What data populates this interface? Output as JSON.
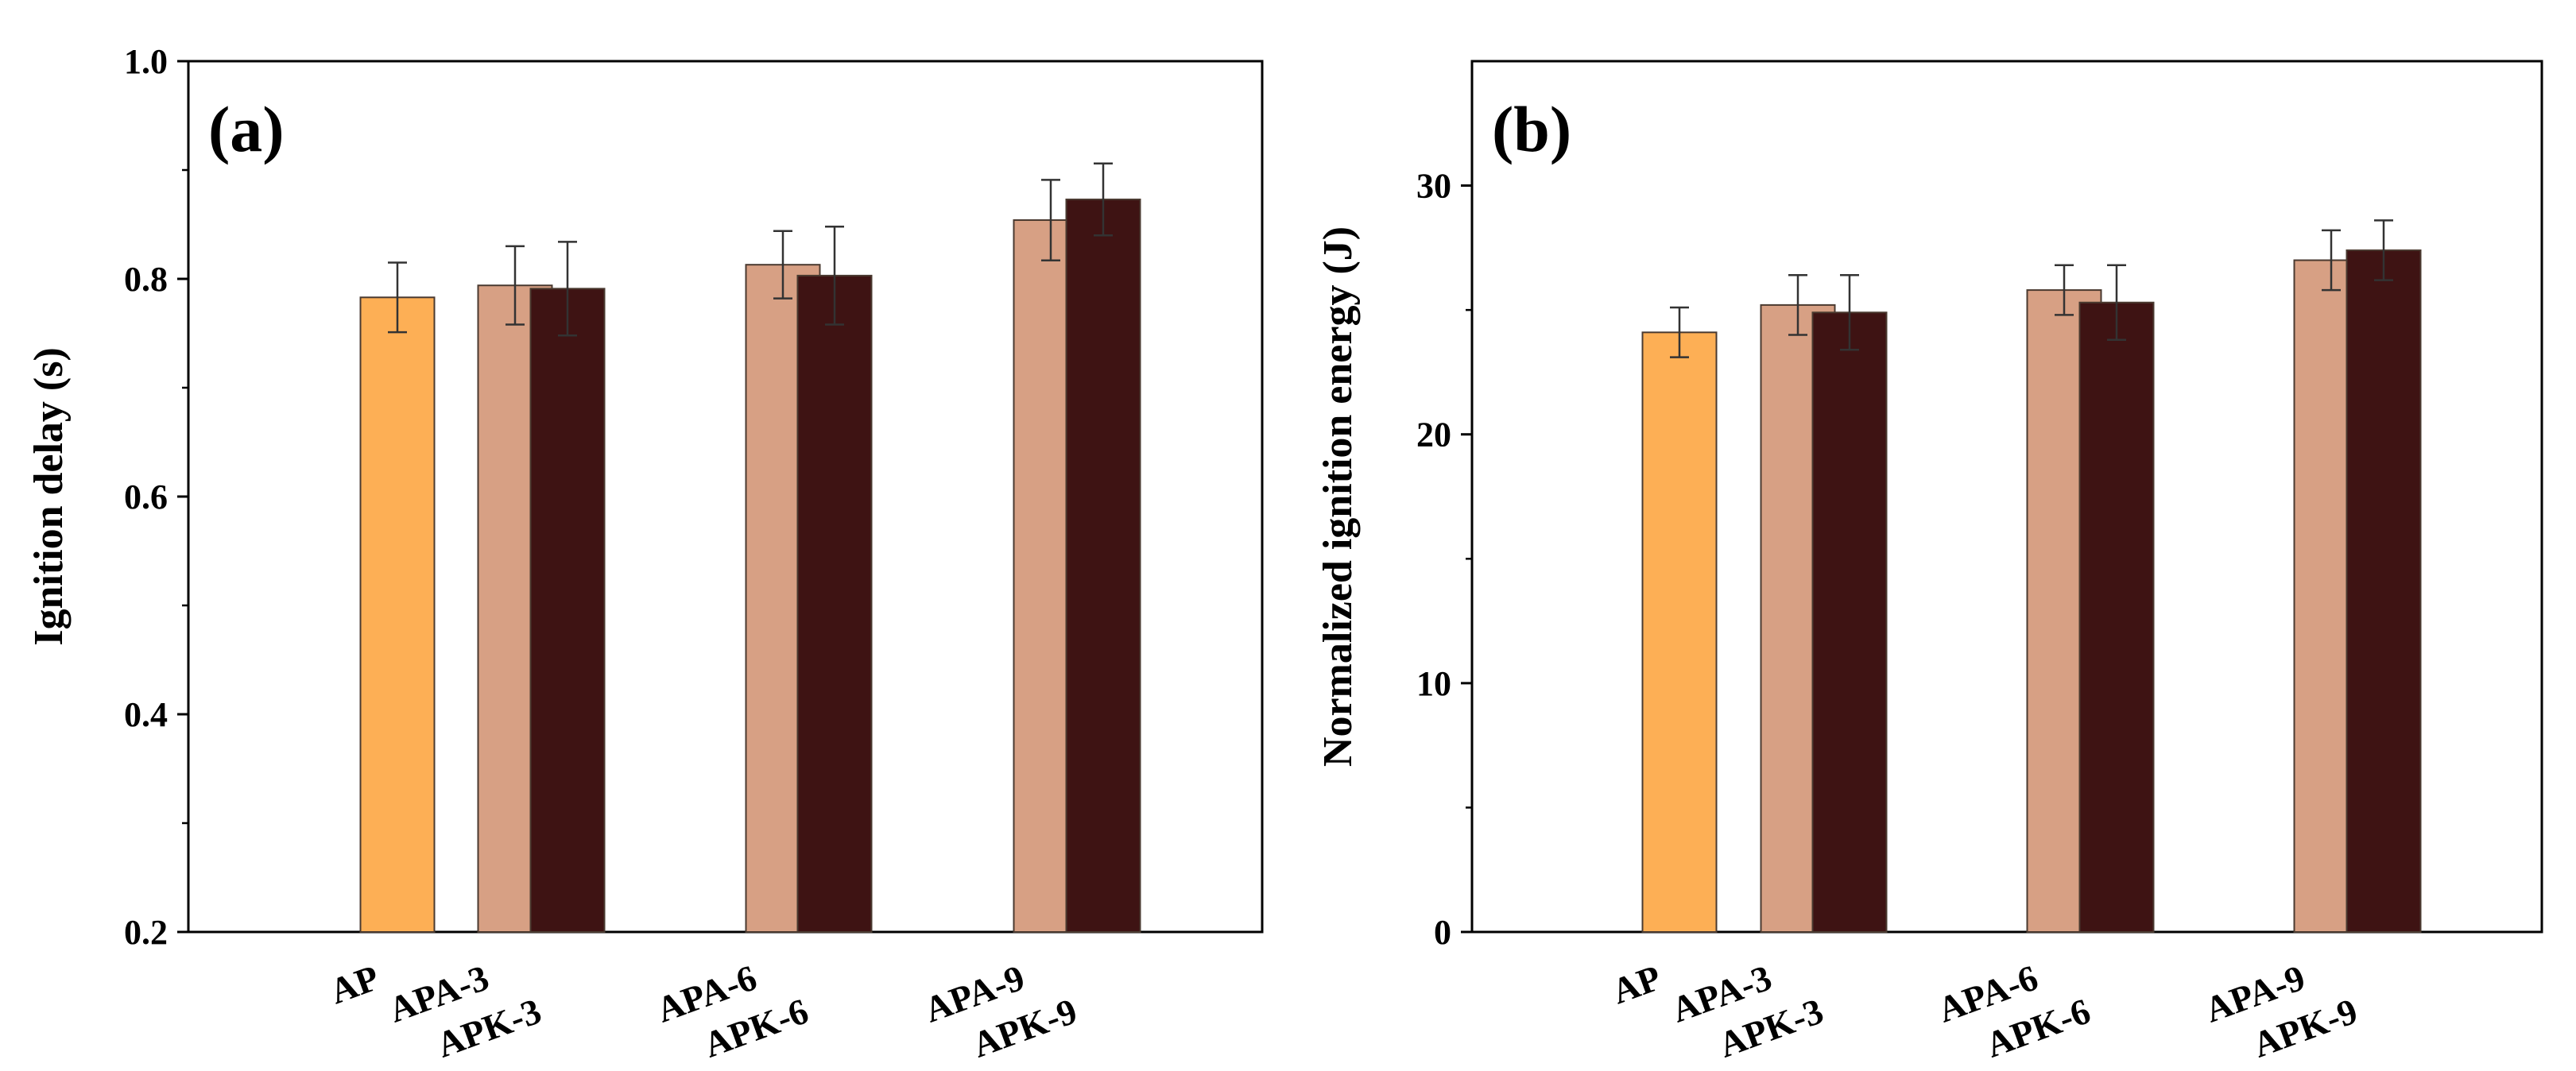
{
  "colors": {
    "AP": "#fdaf55",
    "APA": "#d7a084",
    "APK": "#3e1313",
    "edge": "#4a3a30",
    "axis": "#000000"
  },
  "chart_data": [
    {
      "type": "bar",
      "panel_label": "(a)",
      "ylabel": "Ignition delay (s)",
      "ylim": [
        0.2,
        1.0
      ],
      "yticks": [
        0.2,
        0.4,
        0.6,
        0.8,
        1.0
      ],
      "ytick_labels": [
        "0.2",
        "0.4",
        "0.6",
        "0.8",
        "1.0"
      ],
      "categories": [
        "AP",
        "APA-3",
        "APK-3",
        "APA-6",
        "APK-6",
        "APA-9",
        "APK-9"
      ],
      "bars": [
        {
          "label": "AP",
          "group": "AP",
          "value": 0.783,
          "error": 0.032
        },
        {
          "label": "APA-3",
          "group": "APA",
          "value": 0.794,
          "error": 0.036
        },
        {
          "label": "APK-3",
          "group": "APK",
          "value": 0.791,
          "error": 0.043
        },
        {
          "label": "APA-6",
          "group": "APA",
          "value": 0.813,
          "error": 0.031
        },
        {
          "label": "APK-6",
          "group": "APK",
          "value": 0.803,
          "error": 0.045
        },
        {
          "label": "APA-9",
          "group": "APA",
          "value": 0.854,
          "error": 0.037
        },
        {
          "label": "APK-9",
          "group": "APK",
          "value": 0.873,
          "error": 0.033
        }
      ]
    },
    {
      "type": "bar",
      "panel_label": "(b)",
      "ylabel": "Normalized ignition energy (J)",
      "ylim": [
        0,
        35
      ],
      "yticks": [
        0,
        10,
        20,
        30
      ],
      "ytick_labels": [
        "0",
        "10",
        "20",
        "30"
      ],
      "categories": [
        "AP",
        "APA-3",
        "APK-3",
        "APA-6",
        "APK-6",
        "APA-9",
        "APK-9"
      ],
      "bars": [
        {
          "label": "AP",
          "group": "AP",
          "value": 24.1,
          "error": 1.0
        },
        {
          "label": "APA-3",
          "group": "APA",
          "value": 25.2,
          "error": 1.2
        },
        {
          "label": "APK-3",
          "group": "APK",
          "value": 24.9,
          "error": 1.5
        },
        {
          "label": "APA-6",
          "group": "APA",
          "value": 25.8,
          "error": 1.0
        },
        {
          "label": "APK-6",
          "group": "APK",
          "value": 25.3,
          "error": 1.5
        },
        {
          "label": "APA-9",
          "group": "APA",
          "value": 27.0,
          "error": 1.2
        },
        {
          "label": "APK-9",
          "group": "APK",
          "value": 27.4,
          "error": 1.2
        }
      ]
    }
  ]
}
